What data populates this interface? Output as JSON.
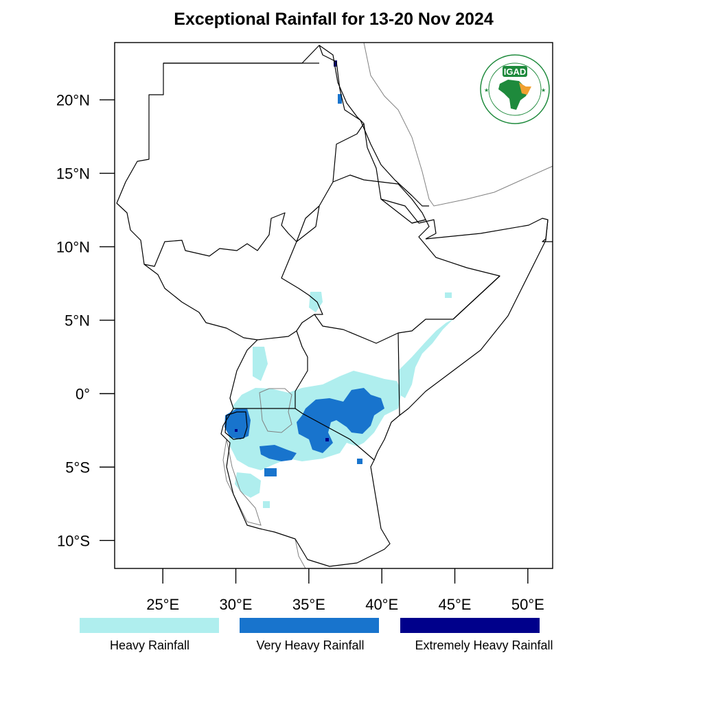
{
  "title": "Exceptional Rainfall for 13-20 Nov 2024",
  "axes": {
    "lat_ticks": [
      {
        "value": 20,
        "label": "20°N"
      },
      {
        "value": 15,
        "label": "15°N"
      },
      {
        "value": 10,
        "label": "10°N"
      },
      {
        "value": 5,
        "label": "5°N"
      },
      {
        "value": 0,
        "label": "0°"
      },
      {
        "value": -5,
        "label": "5°S"
      },
      {
        "value": -10,
        "label": "10°S"
      }
    ],
    "lon_ticks": [
      {
        "value": 25,
        "label": "25°E"
      },
      {
        "value": 30,
        "label": "30°E"
      },
      {
        "value": 35,
        "label": "35°E"
      },
      {
        "value": 40,
        "label": "40°E"
      },
      {
        "value": 45,
        "label": "45°E"
      },
      {
        "value": 50,
        "label": "50°E"
      }
    ],
    "lon_range": [
      21.7,
      51.7
    ],
    "lat_range": [
      -11.9,
      23.9
    ]
  },
  "legend": [
    {
      "label": "Heavy Rainfall",
      "color": "#afeeee"
    },
    {
      "label": "Very Heavy Rainfall",
      "color": "#1874cd"
    },
    {
      "label": "Extremely Heavy Rainfall",
      "color": "#00008b"
    }
  ],
  "logo": {
    "text": "IGAD",
    "ring_text": "INTERGOVERNMENTAL AUTHORITY ON DEVELOPMENT"
  },
  "colors": {
    "border": "#000000",
    "coast": "#808080",
    "logo_green": "#1e8a3c",
    "logo_orange": "#f0a030"
  }
}
